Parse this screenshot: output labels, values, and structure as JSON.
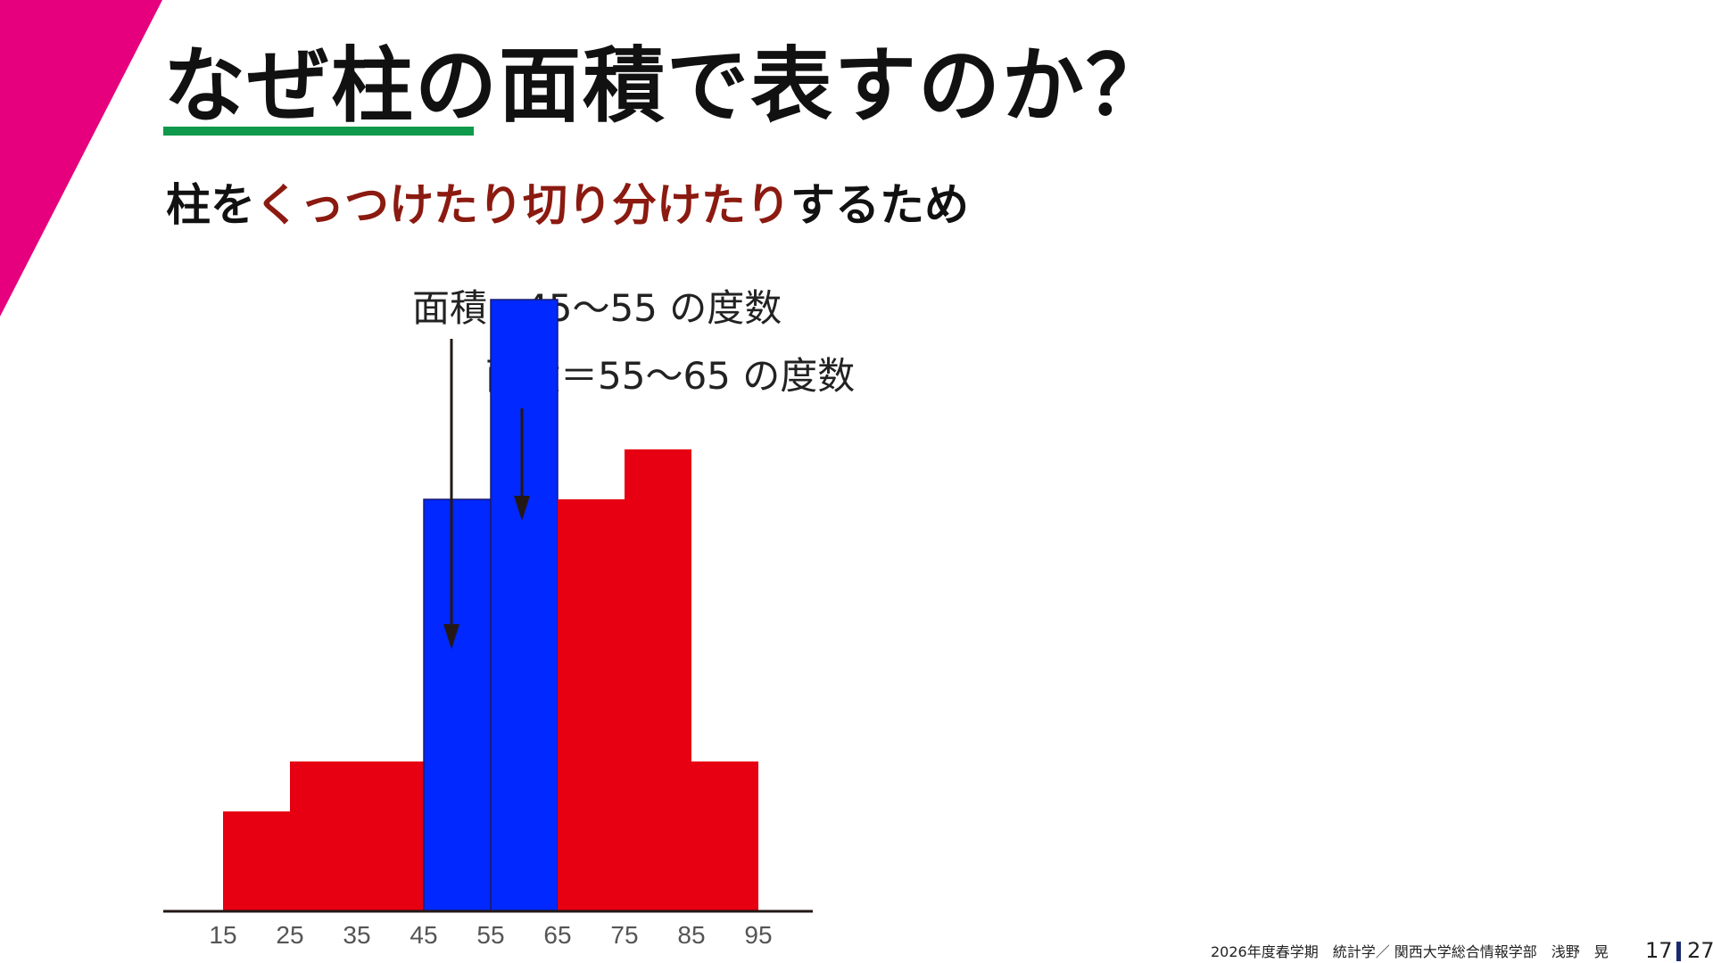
{
  "slide": {
    "title": "なぜ柱の面積で表すのか？",
    "subtitle": {
      "prefix": "柱を",
      "highlight": "くっつけたり切り分けたり",
      "suffix": "するため"
    },
    "annotation_1": "面積＝45～55 の度数",
    "annotation_2": "面積＝55～65 の度数"
  },
  "footer": {
    "course": "2026年度春学期　統計学／ 関西大学総合情報学部　浅野　晃",
    "page_current": "17",
    "page_total": "27"
  },
  "colors": {
    "accent_pink": "#e6007e",
    "underline_green": "#0e9a4a",
    "highlight_red_text": "#8b1a10",
    "bar_red": "#e60012",
    "bar_blue": "#0028ff"
  },
  "chart_data": {
    "type": "bar",
    "subtype": "histogram",
    "x_ticks": [
      "15",
      "25",
      "35",
      "45",
      "55",
      "65",
      "75",
      "85",
      "95"
    ],
    "bins": [
      {
        "from": 15,
        "to": 25,
        "value": 4,
        "color": "red"
      },
      {
        "from": 25,
        "to": 45,
        "value": 6,
        "color": "red"
      },
      {
        "from": 45,
        "to": 55,
        "value": 16.5,
        "color": "blue"
      },
      {
        "from": 55,
        "to": 65,
        "value": 24.5,
        "color": "blue"
      },
      {
        "from": 65,
        "to": 75,
        "value": 16.5,
        "color": "red"
      },
      {
        "from": 75,
        "to": 85,
        "value": 18.5,
        "color": "red"
      },
      {
        "from": 85,
        "to": 95,
        "value": 6,
        "color": "red"
      }
    ],
    "y_axis_shown": false,
    "grid": false
  }
}
